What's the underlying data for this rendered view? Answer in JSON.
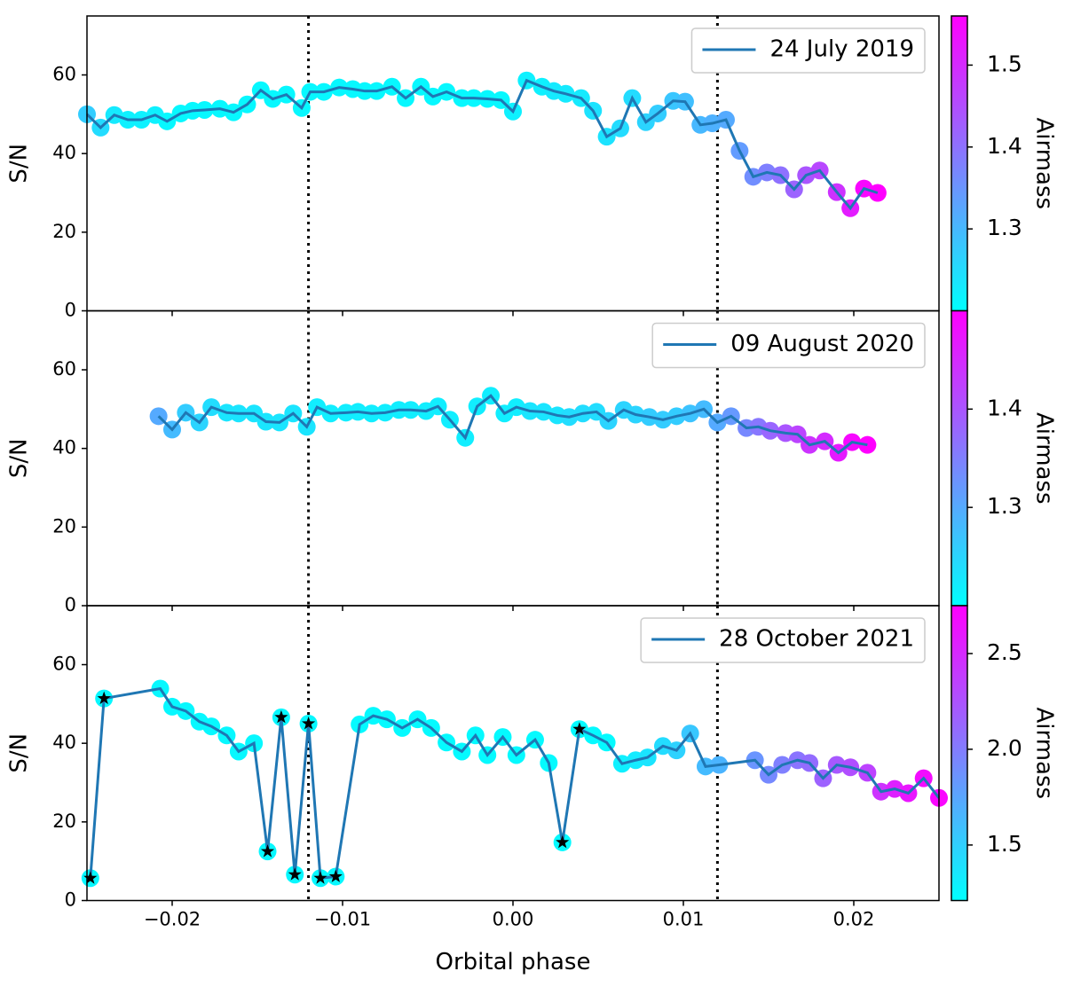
{
  "chart_data": [
    {
      "type": "line",
      "ylabel": "S/N",
      "ylim": [
        0,
        75
      ],
      "yticks": [
        0,
        20,
        40,
        60
      ],
      "xlim": [
        -0.025,
        0.025
      ],
      "vlines": [
        -0.012,
        0.012
      ],
      "cmap": "cool",
      "colorbar_label": "Airmass",
      "clim": [
        1.2,
        1.56
      ],
      "cticks": [
        1.3,
        1.4,
        1.5
      ],
      "legend": "upper right",
      "series": [
        {
          "name": "24 July 2019",
          "color": "#1f77b4",
          "x": [
            -0.025,
            -0.0242,
            -0.0234,
            -0.0226,
            -0.0218,
            -0.021,
            -0.0203,
            -0.0195,
            -0.0188,
            -0.0181,
            -0.0172,
            -0.0164,
            -0.0156,
            -0.0148,
            -0.0141,
            -0.0133,
            -0.0124,
            -0.0119,
            -0.0111,
            -0.0102,
            -0.0094,
            -0.0087,
            -0.008,
            -0.0071,
            -0.0063,
            -0.0054,
            -0.0047,
            -0.0039,
            -0.003,
            -0.0023,
            -0.0015,
            -0.0007,
            0,
            0.0008,
            0.0017,
            0.0024,
            0.0031,
            0.004,
            0.0047,
            0.0055,
            0.0063,
            0.007,
            0.0078,
            0.0085,
            0.0094,
            0.0101,
            0.011,
            0.0117,
            0.0125,
            0.0133,
            0.0141,
            0.0149,
            0.0157,
            0.0165,
            0.0172,
            0.018,
            0.019,
            0.0198,
            0.0206,
            0.0214
          ],
          "values": [
            50,
            46.6,
            49.8,
            48.6,
            48.6,
            49.8,
            48.2,
            50.2,
            50.9,
            51.1,
            51.4,
            50.5,
            52.5,
            56.1,
            53.9,
            55,
            51.6,
            55.7,
            55.7,
            56.8,
            56.4,
            55.9,
            55.9,
            57,
            54.1,
            57,
            54.5,
            55.7,
            54.1,
            54.1,
            53.9,
            53.6,
            50.7,
            58.6,
            57,
            55.9,
            55.2,
            54.1,
            50.9,
            44.3,
            46.4,
            54.1,
            48,
            50.2,
            53.4,
            53.2,
            47.3,
            47.7,
            48.6,
            40.7,
            34.1,
            35.2,
            34.5,
            30.9,
            34.5,
            35.7,
            30.2,
            26.1,
            31.1,
            30
          ],
          "airmass": [
            1.27,
            1.25,
            1.23,
            1.22,
            1.22,
            1.22,
            1.21,
            1.21,
            1.21,
            1.21,
            1.21,
            1.21,
            1.21,
            1.21,
            1.21,
            1.21,
            1.21,
            1.21,
            1.21,
            1.21,
            1.21,
            1.21,
            1.21,
            1.21,
            1.21,
            1.21,
            1.21,
            1.21,
            1.21,
            1.21,
            1.21,
            1.21,
            1.22,
            1.22,
            1.22,
            1.23,
            1.23,
            1.23,
            1.24,
            1.24,
            1.25,
            1.25,
            1.26,
            1.27,
            1.28,
            1.29,
            1.3,
            1.31,
            1.32,
            1.34,
            1.36,
            1.38,
            1.4,
            1.42,
            1.44,
            1.46,
            1.49,
            1.52,
            1.55,
            1.56
          ]
        }
      ]
    },
    {
      "type": "line",
      "ylabel": "S/N",
      "ylim": [
        0,
        75
      ],
      "yticks": [
        0,
        20,
        40,
        60
      ],
      "xlim": [
        -0.025,
        0.025
      ],
      "vlines": [
        -0.012,
        0.012
      ],
      "cmap": "cool",
      "colorbar_label": "Airmass",
      "clim": [
        1.2,
        1.5
      ],
      "cticks": [
        1.3,
        1.4
      ],
      "legend": "upper right",
      "series": [
        {
          "name": "09 August 2020",
          "color": "#1f77b4",
          "x": [
            -0.0208,
            -0.02,
            -0.0192,
            -0.0184,
            -0.0177,
            -0.0168,
            -0.0161,
            -0.0152,
            -0.0145,
            -0.0137,
            -0.0129,
            -0.0121,
            -0.0115,
            -0.0107,
            -0.0098,
            -0.0091,
            -0.0083,
            -0.0075,
            -0.0067,
            -0.006,
            -0.0051,
            -0.0044,
            -0.0037,
            -0.0028,
            -0.0021,
            -0.0013,
            -0.0005,
            0.0002,
            0.001,
            0.0018,
            0.0026,
            0.0033,
            0.0041,
            0.0049,
            0.0056,
            0.0065,
            0.0072,
            0.008,
            0.0088,
            0.0096,
            0.0104,
            0.0112,
            0.012,
            0.0128,
            0.0137,
            0.0144,
            0.0151,
            0.016,
            0.0167,
            0.0174,
            0.0183,
            0.0191,
            0.0199,
            0.0208
          ],
          "values": [
            48.2,
            44.8,
            49.1,
            46.6,
            50.5,
            49.1,
            48.9,
            48.9,
            46.8,
            46.6,
            48.9,
            45.5,
            50.5,
            48.9,
            49.1,
            49.3,
            48.9,
            49.1,
            49.8,
            49.8,
            49.5,
            50.7,
            47.3,
            42.7,
            50.7,
            53.4,
            48.9,
            50.5,
            49.5,
            49.3,
            48.4,
            48,
            48.9,
            49.3,
            47,
            49.8,
            48.6,
            48,
            47.3,
            48.2,
            48.9,
            50,
            46.6,
            48.2,
            45.2,
            45.5,
            44.5,
            43.9,
            43.6,
            40.9,
            41.8,
            38.9,
            41.6,
            40.9
          ],
          "airmass": [
            1.3,
            1.28,
            1.26,
            1.25,
            1.24,
            1.23,
            1.23,
            1.23,
            1.23,
            1.23,
            1.23,
            1.23,
            1.22,
            1.22,
            1.22,
            1.22,
            1.22,
            1.22,
            1.22,
            1.22,
            1.22,
            1.22,
            1.22,
            1.22,
            1.22,
            1.22,
            1.22,
            1.22,
            1.23,
            1.23,
            1.23,
            1.24,
            1.24,
            1.24,
            1.25,
            1.25,
            1.25,
            1.26,
            1.26,
            1.26,
            1.27,
            1.28,
            1.3,
            1.32,
            1.34,
            1.36,
            1.38,
            1.4,
            1.42,
            1.44,
            1.45,
            1.47,
            1.49,
            1.5
          ]
        }
      ]
    },
    {
      "type": "line",
      "ylabel": "S/N",
      "xlabel": "Orbital phase",
      "ylim": [
        0,
        75
      ],
      "yticks": [
        0,
        20,
        40,
        60
      ],
      "xlim": [
        -0.025,
        0.025
      ],
      "xticks": [
        {
          "value": -0.02,
          "label": "−0.02"
        },
        {
          "value": -0.01,
          "label": "−0.01"
        },
        {
          "value": 0,
          "label": "0.00"
        },
        {
          "value": 0.01,
          "label": "0.01"
        },
        {
          "value": 0.02,
          "label": "0.02"
        }
      ],
      "vlines": [
        -0.012,
        0.012
      ],
      "cmap": "cool",
      "colorbar_label": "Airmass",
      "clim": [
        1.21,
        2.75
      ],
      "cticks": [
        1.5,
        2.0,
        2.5
      ],
      "cticklabels": [
        "1.5",
        "2.0",
        "2.5"
      ],
      "legend": "upper right",
      "series": [
        {
          "name": "28 October 2021",
          "color": "#1f77b4",
          "x": [
            -0.0248,
            -0.024,
            -0.0207,
            -0.02,
            -0.0192,
            -0.0184,
            -0.0177,
            -0.0168,
            -0.0161,
            -0.0152,
            -0.0144,
            -0.0136,
            -0.0128,
            -0.012,
            -0.0113,
            -0.0104,
            -0.009,
            -0.0082,
            -0.0074,
            -0.0065,
            -0.0056,
            -0.0048,
            -0.0039,
            -0.003,
            -0.0022,
            -0.0015,
            -0.0006,
            0.0002,
            0.0013,
            0.0021,
            0.0029,
            0.0039,
            0.0047,
            0.0055,
            0.0064,
            0.0072,
            0.0079,
            0.0088,
            0.0096,
            0.0104,
            0.0113,
            0.0121,
            0.0142,
            0.015,
            0.0158,
            0.0167,
            0.0174,
            0.0182,
            0.019,
            0.0198,
            0.0208,
            0.0216,
            0.0224,
            0.0232,
            0.0241,
            0.025
          ],
          "values": [
            5.7,
            51.4,
            53.9,
            49.3,
            48.2,
            45.5,
            44.3,
            42,
            37.9,
            40,
            12.5,
            46.6,
            6.6,
            45,
            5.7,
            6.1,
            44.8,
            47,
            46.1,
            43.9,
            46.1,
            43.9,
            40.2,
            37.9,
            42,
            37,
            41.6,
            37,
            40.9,
            35,
            14.8,
            43.6,
            42,
            40.2,
            34.8,
            35.7,
            36.4,
            39.3,
            38.2,
            42.5,
            34.1,
            34.5,
            35.7,
            32,
            34.5,
            35.7,
            35,
            31.1,
            34.5,
            33.9,
            32.5,
            27.7,
            28.4,
            27.3,
            31.1,
            26.1
          ],
          "airmass": [
            1.25,
            1.25,
            1.25,
            1.25,
            1.25,
            1.25,
            1.25,
            1.25,
            1.25,
            1.25,
            1.25,
            1.25,
            1.25,
            1.25,
            1.25,
            1.25,
            1.24,
            1.24,
            1.24,
            1.24,
            1.24,
            1.24,
            1.24,
            1.24,
            1.24,
            1.24,
            1.24,
            1.24,
            1.24,
            1.24,
            1.24,
            1.24,
            1.24,
            1.24,
            1.3,
            1.33,
            1.37,
            1.42,
            1.48,
            1.55,
            1.62,
            1.66,
            1.85,
            1.92,
            1.98,
            2.05,
            2.1,
            2.16,
            2.22,
            2.28,
            2.35,
            2.45,
            2.55,
            2.62,
            2.68,
            2.72
          ],
          "star_points": [
            0,
            1,
            10,
            11,
            12,
            13,
            14,
            15,
            30,
            31
          ]
        }
      ]
    }
  ]
}
